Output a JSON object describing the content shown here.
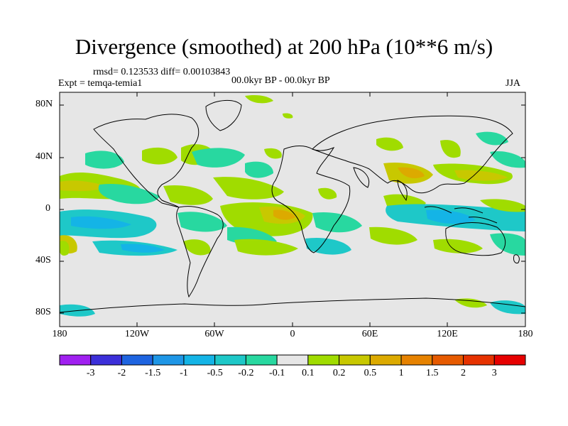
{
  "title": "Divergence (smoothed) at 200 hPa (10**6 m/s)",
  "stats": "rmsd= 0.123533 diff= 0.00103843",
  "experiment": "Expt = temqa-temia1",
  "period": "00.0kyr BP - 00.0kyr BP",
  "season": "JJA",
  "y_axis_labels": [
    "80N",
    "40N",
    "0",
    "40S",
    "80S"
  ],
  "x_axis_labels": [
    "180",
    "120W",
    "60W",
    "0",
    "60E",
    "120E",
    "180"
  ],
  "colorbar": {
    "labels": [
      "-3",
      "-2",
      "-1.5",
      "-1",
      "-0.5",
      "-0.2",
      "-0.1",
      "0.1",
      "0.2",
      "0.5",
      "1",
      "1.5",
      "2",
      "3"
    ],
    "colors": [
      "#a020f0",
      "#3c2fd9",
      "#1e64e0",
      "#1e96e6",
      "#14b4e6",
      "#1ec8c8",
      "#28d8a0",
      "#e6e6e6",
      "#a0dc00",
      "#c8c800",
      "#dcaa00",
      "#e68200",
      "#e65a00",
      "#e63200",
      "#e60000"
    ]
  },
  "land_color": "#000000",
  "ocean_background": "#e6e6e6"
}
